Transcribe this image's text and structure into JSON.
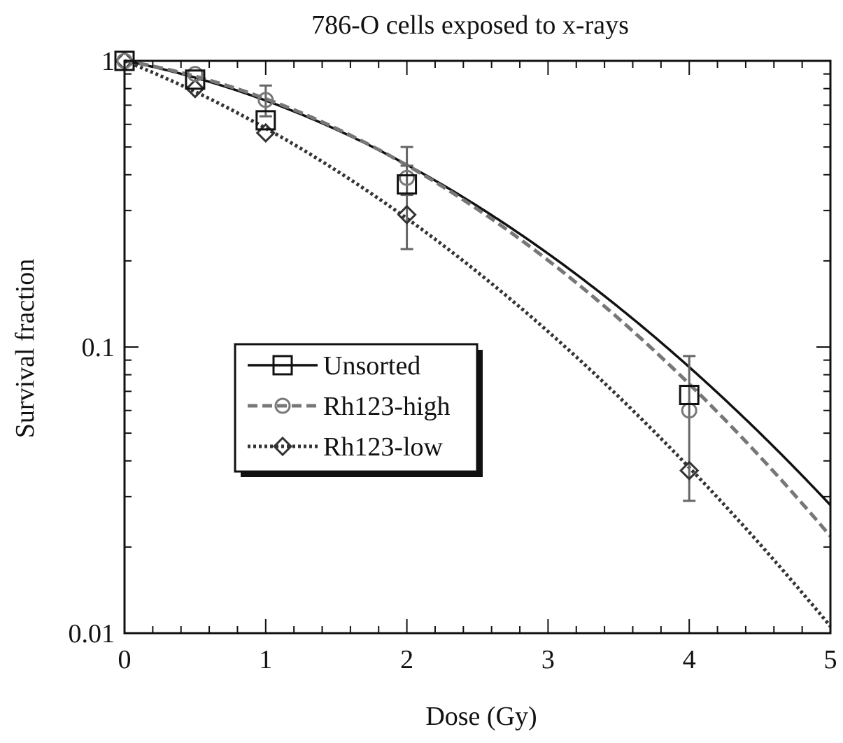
{
  "chart_data": {
    "type": "line",
    "title": "786-O cells exposed to x-rays",
    "xlabel": "Dose (Gy)",
    "ylabel": "Survival fraction",
    "xlim": [
      0,
      5
    ],
    "ylim": [
      0.01,
      1
    ],
    "yscale": "log",
    "x_ticks": [
      "0",
      "1",
      "2",
      "3",
      "4",
      "5"
    ],
    "y_ticks": [
      "0.01",
      "0.1",
      "1"
    ],
    "legend_position": "center-left",
    "series": [
      {
        "name": "Unsorted",
        "marker": "square",
        "color": "#111111",
        "line_style": "solid",
        "points": [
          {
            "x": 0,
            "y": 1.0
          },
          {
            "x": 0.5,
            "y": 0.86
          },
          {
            "x": 1,
            "y": 0.62
          },
          {
            "x": 2,
            "y": 0.37
          },
          {
            "x": 4,
            "y": 0.068
          }
        ],
        "fit": {
          "alpha": 0.22,
          "beta": 0.099
        }
      },
      {
        "name": "Rh123-high",
        "marker": "circle",
        "color": "#777777",
        "line_style": "dashed",
        "points": [
          {
            "x": 0,
            "y": 1.0
          },
          {
            "x": 0.5,
            "y": 0.9
          },
          {
            "x": 1,
            "y": 0.73,
            "err_low": 0.64,
            "err_high": 0.82
          },
          {
            "x": 2,
            "y": 0.39,
            "err_low": 0.34,
            "err_high": 0.5
          },
          {
            "x": 4,
            "y": 0.06,
            "err_low": 0.029,
            "err_high": 0.093
          }
        ],
        "fit": {
          "alpha": 0.19,
          "beta": 0.115
        }
      },
      {
        "name": "Rh123-low",
        "marker": "diamond",
        "color": "#333333",
        "line_style": "dotted",
        "points": [
          {
            "x": 0,
            "y": 1.0
          },
          {
            "x": 0.5,
            "y": 0.8
          },
          {
            "x": 1,
            "y": 0.56
          },
          {
            "x": 2,
            "y": 0.29,
            "err_low": 0.22,
            "err_high": 0.43
          },
          {
            "x": 4,
            "y": 0.037
          }
        ],
        "fit": {
          "alpha": 0.45,
          "beta": 0.092
        }
      }
    ]
  }
}
